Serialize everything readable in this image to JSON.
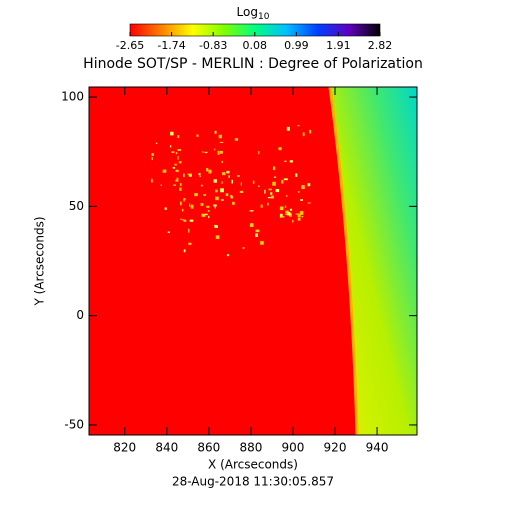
{
  "chart_data": {
    "type": "image",
    "title": "Hinode SOT/SP - MERLIN : Degree of Polarization",
    "xlabel": "X (Arcseconds)",
    "ylabel": "Y (Arcseconds)",
    "footer": "28-Aug-2018 11:30:05.857",
    "xlim": [
      803,
      959
    ],
    "xticks": [
      820,
      840,
      860,
      880,
      900,
      920,
      940
    ],
    "ylim": [
      -54.6,
      104.6
    ],
    "yticks": [
      -50,
      0,
      50,
      100
    ],
    "colorbar_label": "Log",
    "colorbar_label_subscript": "10",
    "clim": [
      -2.65,
      2.82
    ],
    "cticks": [
      -2.65,
      -1.74,
      -0.83,
      0.08,
      0.99,
      1.91,
      2.82
    ],
    "colormap": [
      "#ff0000",
      "#ff8000",
      "#ffff00",
      "#80ff00",
      "#00ff80",
      "#00c0ff",
      "#0040ff",
      "#6000c0",
      "#000000"
    ]
  }
}
